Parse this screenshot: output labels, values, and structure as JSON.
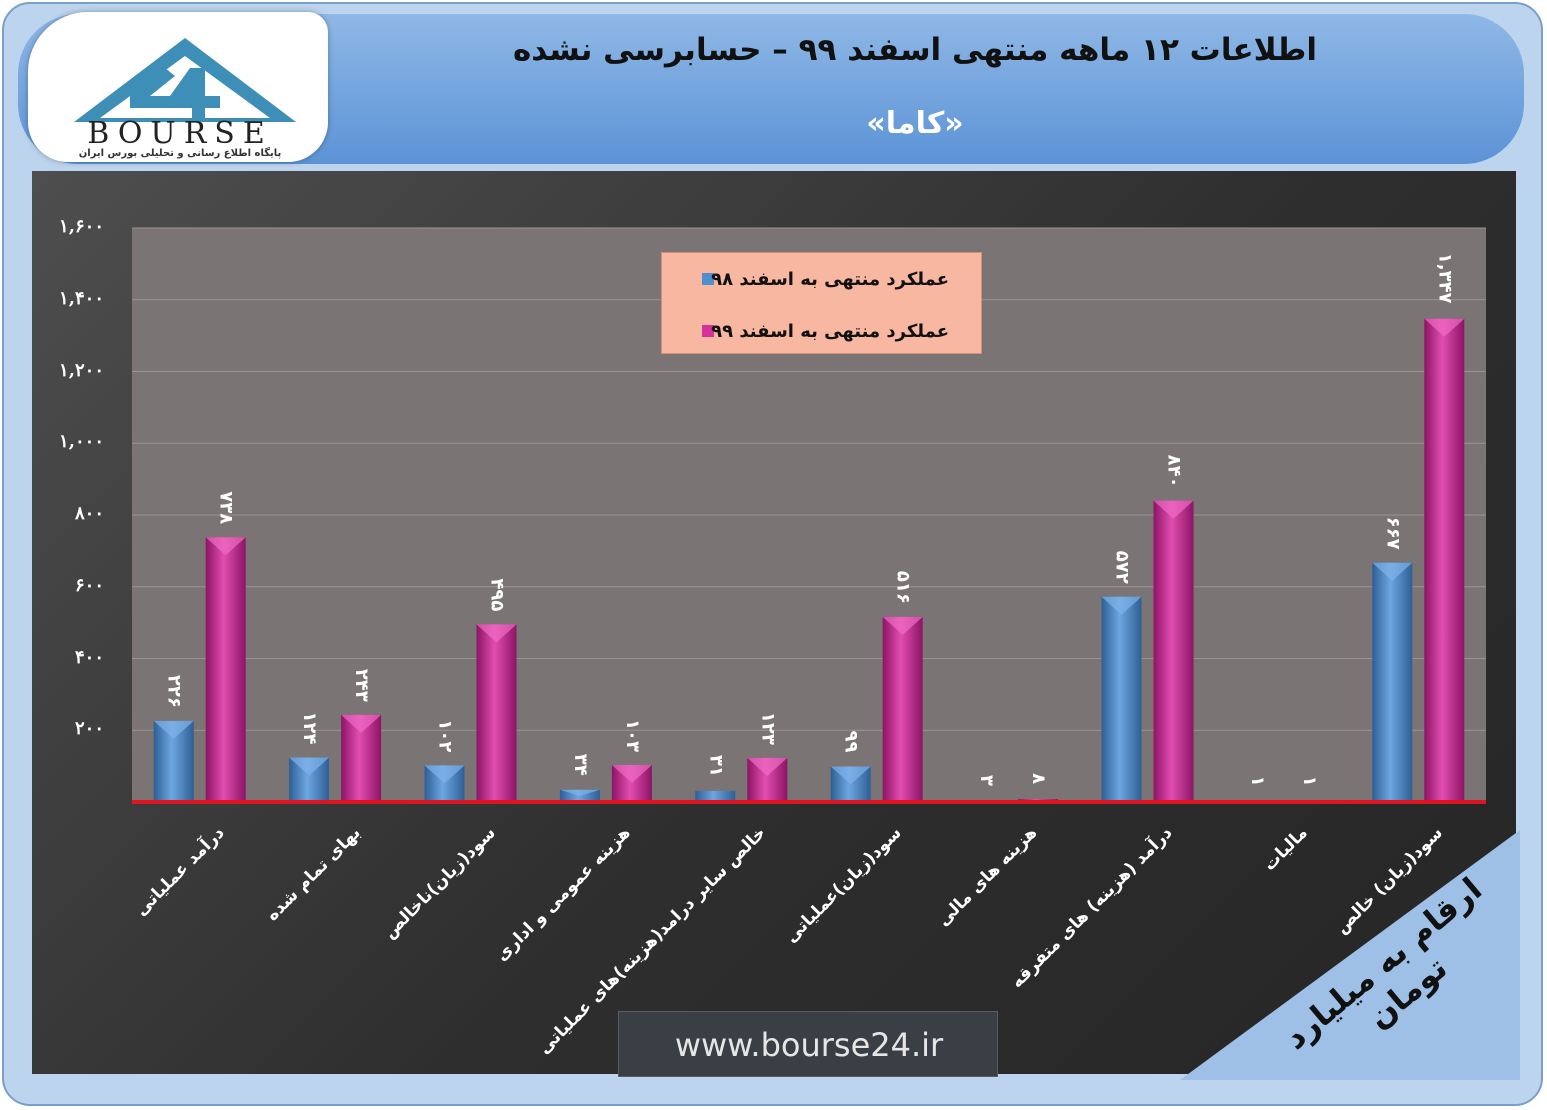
{
  "header": {
    "title": "اطلاعات ۱۲ ماهه منتهی اسفند ۹۹ – حسابرسی نشده",
    "subtitle": "«کاما»"
  },
  "logo": {
    "wordmark": "BOURSE",
    "number": "24",
    "tagline": "پایگاه اطلاع رسانی و تحلیلی بورس ایران"
  },
  "colors": {
    "series1": "#4f8fd0",
    "series2": "#d6319a",
    "baseline": "#e0141e"
  },
  "unit_note": "ارقام به میلیارد تومان",
  "website": "www.bourse24.ir",
  "chart_data": {
    "type": "bar",
    "y_tick_labels": [
      "۲۰۰",
      "۴۰۰",
      "۶۰۰",
      "۸۰۰",
      "۱,۰۰۰",
      "۱,۲۰۰",
      "۱,۴۰۰",
      "۱,۶۰۰"
    ],
    "y_tick_values": [
      200,
      400,
      600,
      800,
      1000,
      1200,
      1400,
      1600
    ],
    "ylim": [
      0,
      1600
    ],
    "grid": true,
    "legend_position": "top-center",
    "categories": [
      "درآمد عملیاتی",
      "بهای تمام شده",
      "سود(زیان)ناخالص",
      "هزینه عمومی و اداری",
      "خالص سایر درامد(هزینه)های عملیاتی",
      "سود(زیان)عملیاتی",
      "هزینه های مالی",
      "درآمد (هزینه) های متفرقه",
      "مالیات",
      "سود(زیان) خالص"
    ],
    "series": [
      {
        "name": "عملکرد منتهی به اسفند ۹۸",
        "values": [
          226,
          124,
          102,
          34,
          31,
          99,
          3,
          572,
          1,
          667
        ],
        "labels": [
          "۲۲۶",
          "۱۲۴",
          "۱۰۲",
          "۳۴",
          "۳۱",
          "۹۹",
          "۳",
          "۵۷۲",
          "۱",
          "۶۶۷"
        ]
      },
      {
        "name": "عملکرد منتهی به اسفند ۹۹",
        "values": [
          738,
          243,
          495,
          103,
          123,
          516,
          8,
          840,
          1,
          1347
        ],
        "labels": [
          "۷۳۸",
          "۲۴۳",
          "۴۹۵",
          "۱۰۳",
          "۱۲۳",
          "۵۱۶",
          "۸",
          "۸۴۰",
          "۱",
          "۱,۳۴۷"
        ]
      }
    ]
  }
}
